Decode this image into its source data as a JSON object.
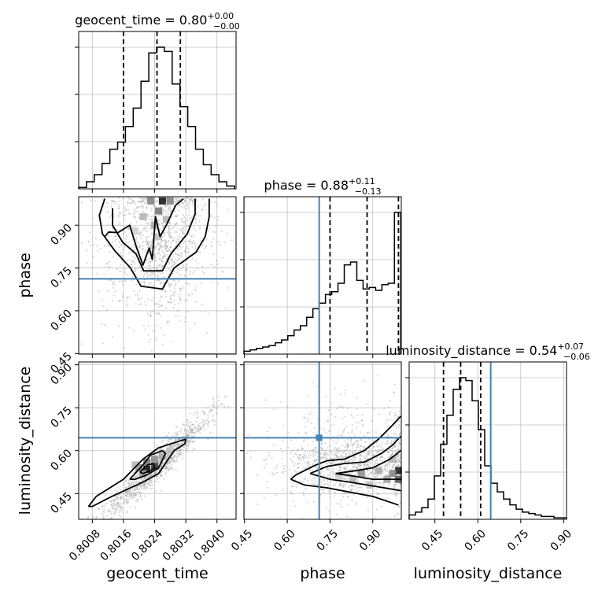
{
  "chart_data": {
    "type": "corner",
    "parameters": [
      "geocent_time",
      "phase",
      "luminosity_distance"
    ],
    "ranges": {
      "geocent_time": [
        0.80045,
        0.80449
      ],
      "phase": [
        0.448,
        1.0
      ],
      "luminosity_distance": [
        0.36,
        0.91
      ]
    },
    "truths": {
      "geocent_time": null,
      "phase": 0.712,
      "luminosity_distance": 0.645
    },
    "grid": true,
    "colors": {
      "truth": "#4682b4",
      "hist": "#000000",
      "scatter": "#a8a8a8",
      "contour": "#000000",
      "grid": "#c0c0c0"
    },
    "titles": [
      {
        "param": "geocent_time",
        "text": "geocent_time = 0.80",
        "sup": "+0.00",
        "sub": "−0.00"
      },
      {
        "param": "phase",
        "text": "phase = 0.88",
        "sup": "+0.11",
        "sub": "−0.13"
      },
      {
        "param": "luminosity_distance",
        "text": "luminosity_distance = 0.54",
        "sup": "+0.07",
        "sub": "−0.06"
      }
    ],
    "axis_labels": {
      "x": [
        "geocent_time",
        "phase",
        "luminosity_distance"
      ],
      "y": [
        "phase",
        "luminosity_distance"
      ]
    },
    "ticks": {
      "geocent_time": {
        "values": [
          0.8008,
          0.8016,
          0.8024,
          0.8032,
          0.804
        ],
        "labels": [
          "0.8008",
          "0.8016",
          "0.8024",
          "0.8032",
          "0.8040"
        ]
      },
      "phase": {
        "values": [
          0.45,
          0.6,
          0.75,
          0.9
        ],
        "labels": [
          "0.45",
          "0.60",
          "0.75",
          "0.90"
        ]
      },
      "luminosity_distance": {
        "values": [
          0.45,
          0.6,
          0.75,
          0.9
        ],
        "labels": [
          "0.45",
          "0.60",
          "0.75",
          "0.90"
        ]
      }
    },
    "quantiles": {
      "geocent_time": [
        0.8016,
        0.80246,
        0.80306
      ],
      "phase": [
        0.75,
        0.88,
        0.99
      ],
      "luminosity_distance": [
        0.48,
        0.54,
        0.61
      ]
    },
    "histograms": {
      "geocent_time": {
        "edges": [
          0.80045,
          0.80065,
          0.80085,
          0.80105,
          0.80125,
          0.80145,
          0.80165,
          0.80185,
          0.80205,
          0.80225,
          0.80245,
          0.80265,
          0.80285,
          0.80305,
          0.80325,
          0.80345,
          0.80365,
          0.80385,
          0.80405,
          0.80425,
          0.80445
        ],
        "counts": [
          0.01,
          0.05,
          0.1,
          0.18,
          0.28,
          0.33,
          0.44,
          0.57,
          0.76,
          0.96,
          1.0,
          0.97,
          0.74,
          0.58,
          0.44,
          0.28,
          0.17,
          0.1,
          0.05,
          0.02
        ]
      },
      "phase": {
        "edges": [
          0.448,
          0.47,
          0.492,
          0.514,
          0.536,
          0.558,
          0.58,
          0.602,
          0.624,
          0.646,
          0.668,
          0.69,
          0.712,
          0.734,
          0.756,
          0.778,
          0.8,
          0.822,
          0.844,
          0.866,
          0.888,
          0.91,
          0.932,
          0.954,
          0.976,
          0.998
        ],
        "counts": [
          0.02,
          0.03,
          0.04,
          0.05,
          0.06,
          0.08,
          0.1,
          0.13,
          0.17,
          0.2,
          0.26,
          0.32,
          0.36,
          0.42,
          0.44,
          0.5,
          0.63,
          0.65,
          0.52,
          0.46,
          0.47,
          0.45,
          0.49,
          0.5,
          1.0
        ]
      },
      "luminosity_distance": {
        "edges": [
          0.36,
          0.382,
          0.404,
          0.426,
          0.448,
          0.47,
          0.492,
          0.514,
          0.536,
          0.558,
          0.58,
          0.602,
          0.624,
          0.646,
          0.668,
          0.69,
          0.712,
          0.734,
          0.756,
          0.778,
          0.8,
          0.822,
          0.844,
          0.866,
          0.888,
          0.91
        ],
        "counts": [
          0.03,
          0.05,
          0.08,
          0.14,
          0.3,
          0.52,
          0.72,
          0.9,
          0.98,
          0.96,
          0.82,
          0.62,
          0.37,
          0.25,
          0.19,
          0.14,
          0.1,
          0.07,
          0.05,
          0.04,
          0.03,
          0.02,
          0.02,
          0.01,
          0.01
        ]
      }
    },
    "contours": {
      "phase_vs_geocent_time": [
        [
          [
            0.80112,
            0.993
          ],
          [
            0.80098,
            0.935
          ],
          [
            0.80106,
            0.87
          ],
          [
            0.80138,
            0.81
          ],
          [
            0.80178,
            0.75
          ],
          [
            0.80205,
            0.686
          ],
          [
            0.8026,
            0.676
          ],
          [
            0.8029,
            0.75
          ],
          [
            0.80346,
            0.805
          ],
          [
            0.8037,
            0.86
          ],
          [
            0.8038,
            0.93
          ],
          [
            0.8038,
            0.993
          ]
        ],
        [
          [
            0.80132,
            0.96
          ],
          [
            0.80132,
            0.9
          ],
          [
            0.80158,
            0.84
          ],
          [
            0.80192,
            0.8
          ],
          [
            0.80212,
            0.74
          ],
          [
            0.8026,
            0.74
          ],
          [
            0.80282,
            0.8
          ],
          [
            0.80324,
            0.87
          ],
          [
            0.80344,
            0.94
          ],
          [
            0.80344,
            0.993
          ]
        ],
        [
          [
            0.80112,
            0.86
          ],
          [
            0.80122,
            0.876
          ],
          [
            0.80146,
            0.874
          ],
          [
            0.80176,
            0.9
          ],
          [
            0.80194,
            0.82
          ],
          [
            0.8021,
            0.76
          ],
          [
            0.80226,
            0.82
          ],
          [
            0.80234,
            0.78
          ],
          [
            0.80242,
            0.93
          ],
          [
            0.80254,
            0.86
          ],
          [
            0.8027,
            0.9
          ],
          [
            0.80294,
            0.97
          ],
          [
            0.80314,
            0.993
          ]
        ]
      ],
      "luminosity_distance_vs_geocent_time": [
        [
          [
            0.8007,
            0.405
          ],
          [
            0.8009,
            0.44
          ],
          [
            0.8016,
            0.5
          ],
          [
            0.8021,
            0.57
          ],
          [
            0.8025,
            0.61
          ],
          [
            0.80296,
            0.63
          ],
          [
            0.8032,
            0.64
          ],
          [
            0.80318,
            0.624
          ],
          [
            0.8029,
            0.6
          ],
          [
            0.8025,
            0.52
          ],
          [
            0.8021,
            0.49
          ],
          [
            0.8013,
            0.44
          ],
          [
            0.8008,
            0.405
          ],
          [
            0.8007,
            0.405
          ]
        ],
        [
          [
            0.80176,
            0.5
          ],
          [
            0.8021,
            0.55
          ],
          [
            0.8023,
            0.585
          ],
          [
            0.8026,
            0.6
          ],
          [
            0.80268,
            0.59
          ],
          [
            0.8025,
            0.54
          ],
          [
            0.8022,
            0.515
          ],
          [
            0.8019,
            0.5
          ],
          [
            0.80176,
            0.5
          ]
        ],
        [
          [
            0.80202,
            0.525
          ],
          [
            0.80222,
            0.55
          ],
          [
            0.80236,
            0.555
          ],
          [
            0.8024,
            0.54
          ],
          [
            0.8023,
            0.53
          ],
          [
            0.8021,
            0.52
          ],
          [
            0.80202,
            0.525
          ]
        ]
      ],
      "luminosity_distance_vs_phase": [
        [
          [
            0.612,
            0.5
          ],
          [
            0.66,
            0.48
          ],
          [
            0.74,
            0.47
          ],
          [
            0.82,
            0.455
          ],
          [
            0.9,
            0.44
          ],
          [
            0.96,
            0.42
          ],
          [
            0.99,
            0.41
          ]
        ],
        [
          [
            0.998,
            0.72
          ],
          [
            0.97,
            0.69
          ],
          [
            0.95,
            0.67
          ],
          [
            0.92,
            0.64
          ],
          [
            0.87,
            0.6
          ],
          [
            0.8,
            0.57
          ],
          [
            0.74,
            0.565
          ],
          [
            0.7,
            0.55
          ],
          [
            0.66,
            0.53
          ],
          [
            0.63,
            0.515
          ],
          [
            0.612,
            0.5
          ]
        ],
        [
          [
            0.68,
            0.52
          ],
          [
            0.74,
            0.545
          ],
          [
            0.8,
            0.555
          ],
          [
            0.87,
            0.56
          ],
          [
            0.93,
            0.59
          ],
          [
            0.97,
            0.62
          ],
          [
            0.998,
            0.65
          ]
        ],
        [
          [
            0.68,
            0.52
          ],
          [
            0.75,
            0.5
          ],
          [
            0.82,
            0.49
          ],
          [
            0.88,
            0.48
          ],
          [
            0.94,
            0.47
          ],
          [
            0.998,
            0.46
          ]
        ],
        [
          [
            0.77,
            0.52
          ],
          [
            0.84,
            0.53
          ],
          [
            0.9,
            0.54
          ],
          [
            0.96,
            0.57
          ],
          [
            0.998,
            0.6
          ]
        ],
        [
          [
            0.77,
            0.52
          ],
          [
            0.84,
            0.51
          ],
          [
            0.9,
            0.5
          ],
          [
            0.96,
            0.5
          ],
          [
            0.998,
            0.5
          ]
        ]
      ]
    },
    "density_cells": {
      "phase_vs_geocent_time": [
        [
          0.8026,
          0.985,
          0.95
        ],
        [
          0.8025,
          0.95,
          0.55
        ],
        [
          0.8023,
          0.985,
          0.5
        ],
        [
          0.8028,
          0.985,
          0.5
        ],
        [
          0.8024,
          0.9,
          0.35
        ],
        [
          0.8021,
          0.93,
          0.3
        ],
        [
          0.8025,
          0.86,
          0.25
        ],
        [
          0.8019,
          0.88,
          0.18
        ],
        [
          0.8027,
          0.92,
          0.3
        ]
      ],
      "luminosity_distance_vs_geocent_time": [
        [
          0.8022,
          0.535,
          0.95
        ],
        [
          0.8024,
          0.545,
          0.8
        ],
        [
          0.8022,
          0.56,
          0.55
        ],
        [
          0.8024,
          0.57,
          0.45
        ],
        [
          0.802,
          0.54,
          0.5
        ],
        [
          0.8021,
          0.52,
          0.4
        ],
        [
          0.8026,
          0.58,
          0.35
        ],
        [
          0.8019,
          0.55,
          0.3
        ],
        [
          0.8028,
          0.6,
          0.25
        ]
      ],
      "luminosity_distance_vs_phase": [
        [
          0.99,
          0.53,
          0.9
        ],
        [
          0.99,
          0.5,
          0.7
        ],
        [
          0.97,
          0.52,
          0.5
        ],
        [
          0.95,
          0.5,
          0.4
        ],
        [
          0.92,
          0.53,
          0.35
        ],
        [
          0.86,
          0.52,
          0.45
        ],
        [
          0.83,
          0.5,
          0.3
        ],
        [
          0.89,
          0.48,
          0.25
        ],
        [
          0.78,
          0.51,
          0.2
        ],
        [
          0.97,
          0.57,
          0.3
        ]
      ]
    }
  }
}
